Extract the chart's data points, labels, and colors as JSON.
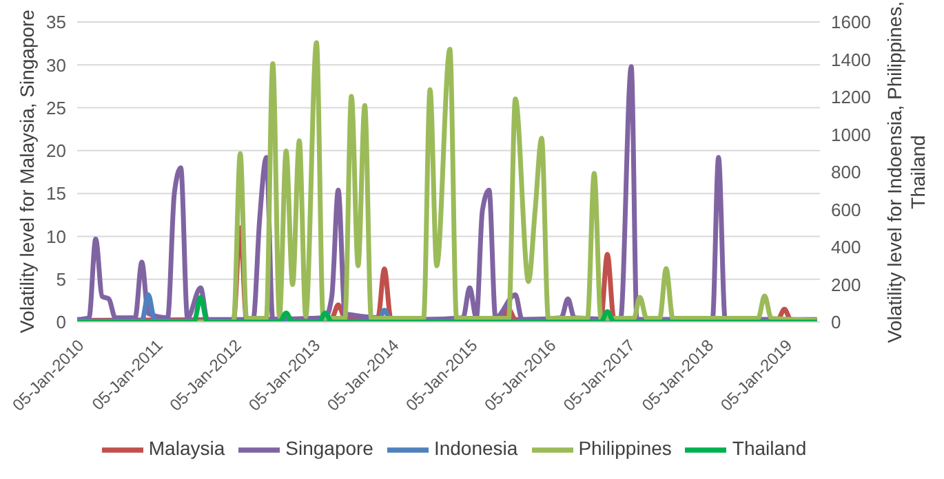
{
  "chart_data": {
    "type": "line",
    "ylabel": "Volatility level for Malaysia, Singapore",
    "y2label": "Volatility level for Indoensia, Philippines, Thailand",
    "xlim": [
      "2010-01-05",
      "2019-06-15"
    ],
    "xticks": [
      {
        "value": "2010-01-05",
        "label": "05-Jan-2010"
      },
      {
        "value": "2011-01-05",
        "label": "05-Jan-2011"
      },
      {
        "value": "2012-01-05",
        "label": "05-Jan-2012"
      },
      {
        "value": "2013-01-05",
        "label": "05-Jan-2013"
      },
      {
        "value": "2014-01-05",
        "label": "05-Jan-2014"
      },
      {
        "value": "2015-01-05",
        "label": "05-Jan-2015"
      },
      {
        "value": "2016-01-05",
        "label": "05-Jan-2016"
      },
      {
        "value": "2017-01-05",
        "label": "05-Jan-2017"
      },
      {
        "value": "2018-01-05",
        "label": "05-Jan-2018"
      },
      {
        "value": "2019-01-05",
        "label": "05-Jan-2019"
      }
    ],
    "ylim": [
      0,
      35
    ],
    "yticks": [
      0,
      5,
      10,
      15,
      20,
      25,
      30,
      35
    ],
    "y2lim": [
      0,
      1600
    ],
    "y2ticks": [
      0,
      200,
      400,
      600,
      800,
      1000,
      1200,
      1400,
      1600
    ],
    "grid": "y",
    "legend": "bottom",
    "marker": "none",
    "line_style": "solid",
    "series": [
      {
        "name": "Malaysia",
        "color": "#c0504d",
        "x": [
          "2010-01-05",
          "2012-01",
          "2012-02",
          "2012-03",
          "2013-04",
          "2013-05",
          "2013-06",
          "2013-11",
          "2013-12",
          "2014-01",
          "2015-06",
          "2015-07",
          "2015-08",
          "2016-09",
          "2016-10",
          "2016-11",
          "2018-12",
          "2019-01",
          "2019-02",
          "2019-06"
        ],
        "values": [
          0.2,
          0.3,
          11,
          0.3,
          0.5,
          2,
          0.5,
          0.5,
          6.2,
          0.3,
          0.3,
          1.5,
          0.3,
          0.3,
          7.9,
          0.3,
          0.3,
          1.5,
          0.2,
          0.2
        ]
      },
      {
        "name": "Singapore",
        "color": "#8064a2",
        "x": [
          "2010-01-05",
          "2010-03",
          "2010-04",
          "2010-05",
          "2010-06",
          "2010-07",
          "2010-10",
          "2010-11",
          "2010-12",
          "2011-03",
          "2011-04",
          "2011-05",
          "2011-06",
          "2011-08",
          "2011-09",
          "2012-04",
          "2012-05",
          "2012-06",
          "2012-07",
          "2013-03",
          "2013-04",
          "2013-05",
          "2013-06",
          "2013-11",
          "2014-06",
          "2014-12",
          "2015-01",
          "2015-02",
          "2015-03",
          "2015-04",
          "2015-05",
          "2015-08",
          "2015-09",
          "2016-03",
          "2016-04",
          "2016-05",
          "2016-12",
          "2017-01-20",
          "2017-02-15",
          "2018-02",
          "2018-03",
          "2018-04",
          "2019-06"
        ],
        "values": [
          0.3,
          0.5,
          9.7,
          3,
          2.7,
          0.5,
          0.5,
          7,
          1,
          0.5,
          15,
          18,
          0.5,
          4,
          0.3,
          0.3,
          12,
          19.2,
          0.3,
          0.5,
          3,
          15.4,
          1,
          0.5,
          0.3,
          0.5,
          4,
          0.5,
          13,
          15.4,
          0.5,
          3.2,
          0.3,
          0.5,
          2.7,
          0.5,
          0.3,
          29.8,
          0.3,
          0.3,
          19.2,
          0.3,
          0.3
        ]
      },
      {
        "name": "Indonesia",
        "color": "#4f81bd",
        "axis": "y2",
        "x": [
          "2010-01-05",
          "2010-11",
          "2010-12",
          "2011-01",
          "2013-11",
          "2013-12",
          "2014-01",
          "2019-06"
        ],
        "values": [
          5,
          5,
          146,
          5,
          5,
          63,
          5,
          5
        ]
      },
      {
        "name": "Philippines",
        "color": "#9bbb59",
        "axis": "y2",
        "x": [
          "2010-01-05",
          "2012-01",
          "2012-02",
          "2012-03",
          "2012-06",
          "2012-07",
          "2012-08",
          "2012-09",
          "2012-10",
          "2012-11",
          "2012-12",
          "2013-01-20",
          "2013-02-20",
          "2013-06",
          "2013-07",
          "2013-08",
          "2013-09",
          "2013-10",
          "2014-06",
          "2014-07",
          "2014-08",
          "2014-10",
          "2014-11",
          "2015-07",
          "2015-08",
          "2015-10",
          "2015-11",
          "2015-12",
          "2016-01",
          "2016-07",
          "2016-08",
          "2016-09",
          "2017-02",
          "2017-03",
          "2017-04",
          "2017-06",
          "2017-07",
          "2017-08",
          "2018-09",
          "2018-10",
          "2018-11",
          "2019-06"
        ],
        "values": [
          0,
          0,
          898,
          20,
          20,
          1378,
          30,
          912,
          200,
          967,
          30,
          1490,
          20,
          20,
          1204,
          300,
          1155,
          20,
          20,
          1239,
          300,
          1455,
          20,
          20,
          1190,
          216,
          599,
          981,
          20,
          20,
          793,
          20,
          20,
          132,
          20,
          20,
          285,
          20,
          20,
          139,
          20,
          10
        ]
      },
      {
        "name": "Thailand",
        "color": "#00b050",
        "axis": "y2",
        "x": [
          "2010-01-05",
          "2011-07",
          "2011-08",
          "2011-09",
          "2012-08",
          "2012-09",
          "2012-10",
          "2013-02",
          "2013-03",
          "2013-04",
          "2016-09",
          "2016-10",
          "2016-11",
          "2019-06"
        ],
        "values": [
          0,
          0,
          132,
          0,
          0,
          49,
          0,
          0,
          49,
          0,
          0,
          56,
          0,
          0
        ]
      }
    ]
  }
}
